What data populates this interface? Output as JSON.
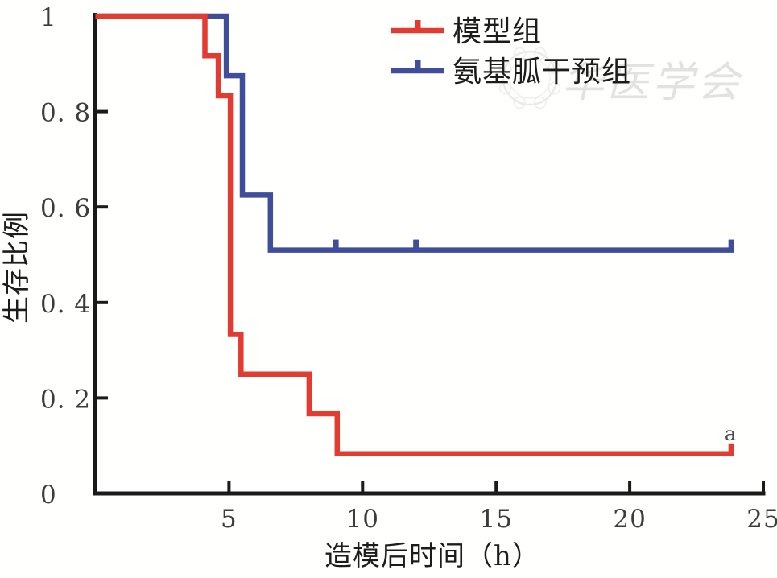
{
  "watermark": {
    "text": "华医学会"
  },
  "legend": {
    "items": [
      {
        "label": "模型组",
        "color": "#e23b31"
      },
      {
        "label": "氨基胍干预组",
        "color": "#404d9b"
      }
    ]
  },
  "style": {
    "background": "#fffffe",
    "axis_color": "#1a1a1a",
    "tick_label_color": "#3c3c3c",
    "model_group_color": "#e23b31",
    "aminoguanidine_group_color": "#404d9b",
    "watermark_color": "#e2e2e2",
    "curve_width": 6.5
  },
  "chart_data": {
    "type": "line",
    "subtype": "kaplan-meier-step-survival",
    "title": "",
    "xlabel": "造模后时间（h）",
    "ylabel": "生存比例",
    "xlim": [
      0,
      25
    ],
    "ylim": [
      0,
      1
    ],
    "grid": false,
    "legend_position": "upper-right-inside",
    "x_ticks": [
      5,
      10,
      15,
      20,
      25
    ],
    "y_ticks": [
      {
        "value": 1,
        "label": "1"
      },
      {
        "value": 0.8,
        "label": "0. 8"
      },
      {
        "value": 0.6,
        "label": "0. 6"
      },
      {
        "value": 0.4,
        "label": "0. 4"
      },
      {
        "value": 0.2,
        "label": "0. 2"
      },
      {
        "value": 0,
        "label": "0"
      }
    ],
    "series": [
      {
        "name": "氨基胍干预组",
        "color": "#404d9b",
        "points": [
          [
            0,
            1
          ],
          [
            4.9,
            1
          ],
          [
            4.9,
            0.875
          ],
          [
            5.5,
            0.875
          ],
          [
            5.5,
            0.625
          ],
          [
            6.55,
            0.625
          ],
          [
            6.55,
            0.51
          ],
          [
            23.9,
            0.51
          ]
        ],
        "censor_marks": [
          [
            9,
            0.51
          ],
          [
            12,
            0.51
          ],
          [
            23.8,
            0.51
          ]
        ]
      },
      {
        "name": "模型组",
        "color": "#e23b31",
        "points": [
          [
            0,
            1
          ],
          [
            4.1,
            1
          ],
          [
            4.1,
            0.917
          ],
          [
            4.6,
            0.917
          ],
          [
            4.6,
            0.833
          ],
          [
            5.05,
            0.833
          ],
          [
            5.05,
            0.333
          ],
          [
            5.45,
            0.333
          ],
          [
            5.45,
            0.25
          ],
          [
            8,
            0.25
          ],
          [
            8,
            0.167
          ],
          [
            9.05,
            0.167
          ],
          [
            9.05,
            0.083
          ],
          [
            23.9,
            0.083
          ]
        ],
        "censor_marks": [
          [
            23.8,
            0.083
          ]
        ]
      }
    ],
    "annotations": [
      {
        "text": "a",
        "x": 23.8,
        "y": 0.13
      }
    ]
  }
}
